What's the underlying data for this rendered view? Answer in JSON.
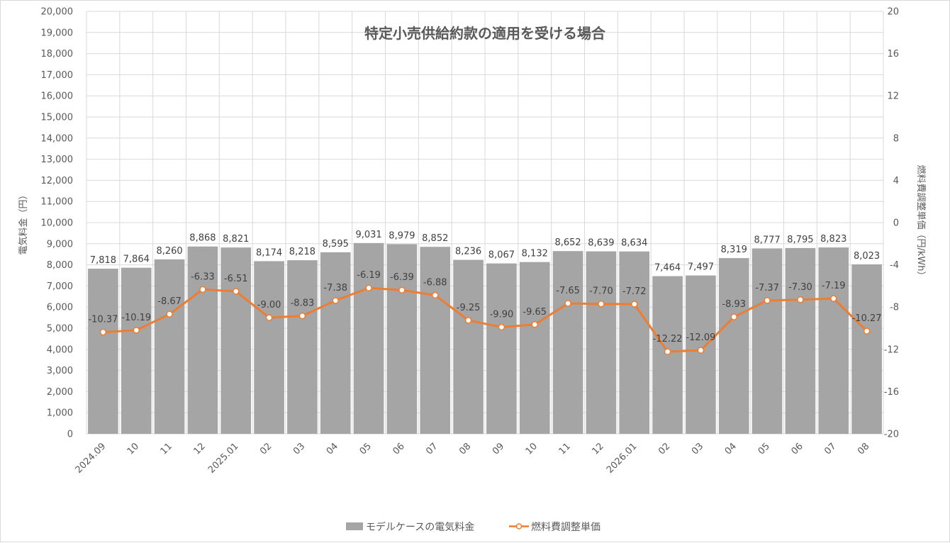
{
  "chart_data": {
    "type": "bar",
    "title": "特定小売供給約款の適用を受ける場合",
    "ylabel": "電気料金（円）",
    "y2label": "燃料費調整単価（円/kWh）",
    "ylim": [
      0,
      20000
    ],
    "y2lim": [
      -20,
      20
    ],
    "yticks": [
      "0",
      "1,000",
      "2,000",
      "3,000",
      "4,000",
      "5,000",
      "6,000",
      "7,000",
      "8,000",
      "9,000",
      "10,000",
      "11,000",
      "12,000",
      "13,000",
      "14,000",
      "15,000",
      "16,000",
      "17,000",
      "18,000",
      "19,000",
      "20,000"
    ],
    "y2ticks": [
      "-20",
      "-16",
      "-12",
      "-8",
      "-4",
      "0",
      "4",
      "8",
      "12",
      "16",
      "20"
    ],
    "categories": [
      "2024.09",
      "10",
      "11",
      "12",
      "2025.01",
      "02",
      "03",
      "04",
      "05",
      "06",
      "07",
      "08",
      "09",
      "10",
      "11",
      "12",
      "2026.01",
      "02",
      "03",
      "04",
      "05",
      "06",
      "07",
      "08"
    ],
    "grid": true,
    "legend_position": "bottom",
    "series": [
      {
        "name": "モデルケースの電気料金",
        "type": "bar",
        "axis": "left",
        "color": "#a5a5a5",
        "values": [
          7818,
          7864,
          8260,
          8868,
          8821,
          8174,
          8218,
          8595,
          9031,
          8979,
          8852,
          8236,
          8067,
          8132,
          8652,
          8639,
          8634,
          7464,
          7497,
          8319,
          8777,
          8795,
          8823,
          8023
        ],
        "labels": [
          "7,818",
          "7,864",
          "8,260",
          "8,868",
          "8,821",
          "8,174",
          "8,218",
          "8,595",
          "9,031",
          "8,979",
          "8,852",
          "8,236",
          "8,067",
          "8,132",
          "8,652",
          "8,639",
          "8,634",
          "7,464",
          "7,497",
          "8,319",
          "8,777",
          "8,795",
          "8,823",
          "8,023"
        ]
      },
      {
        "name": "燃料費調整単価",
        "type": "line",
        "axis": "right",
        "color": "#ed7d31",
        "values": [
          -10.37,
          -10.19,
          -8.67,
          -6.33,
          -6.51,
          -9.0,
          -8.83,
          -7.38,
          -6.19,
          -6.39,
          -6.88,
          -9.25,
          -9.9,
          -9.65,
          -7.65,
          -7.7,
          -7.72,
          -12.22,
          -12.09,
          -8.93,
          -7.37,
          -7.3,
          -7.19,
          -10.27
        ],
        "labels": [
          "-10.37",
          "-10.19",
          "-8.67",
          "-6.33",
          "-6.51",
          "-9.00",
          "-8.83",
          "-7.38",
          "-6.19",
          "-6.39",
          "-6.88",
          "-9.25",
          "-9.90",
          "-9.65",
          "-7.65",
          "-7.70",
          "-7.72",
          "-12.22",
          "-12.09",
          "-8.93",
          "-7.37",
          "-7.30",
          "-7.19",
          "-10.27"
        ]
      }
    ]
  }
}
